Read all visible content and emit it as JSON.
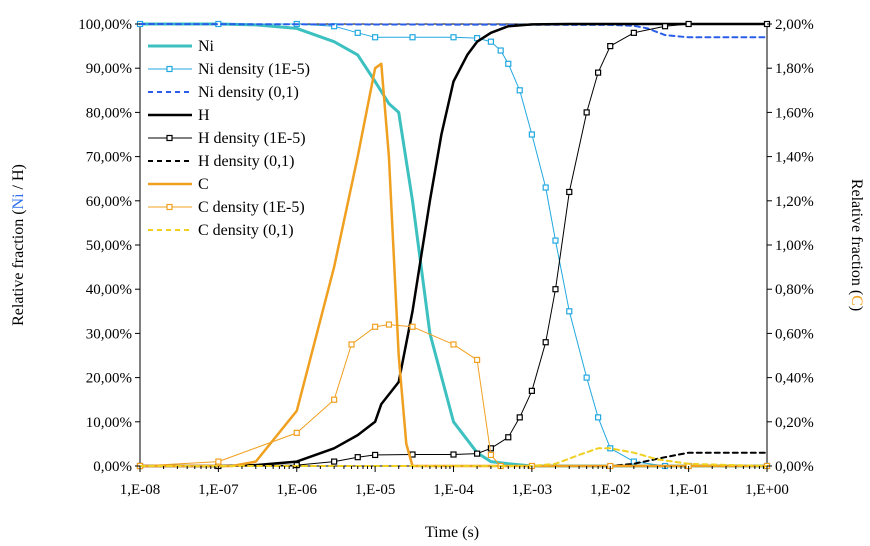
{
  "chart_data": {
    "type": "line",
    "xlabel": "Time (s)",
    "x_scale": "log",
    "x_ticks": [
      "1,E-08",
      "1,E-07",
      "1,E-06",
      "1,E-05",
      "1,E-04",
      "1,E-03",
      "1,E-02",
      "1,E-01",
      "1,E+00"
    ],
    "xlim": [
      1e-08,
      1
    ],
    "y_left": {
      "label_parts": [
        "Relative fraction (",
        "Ni",
        " / ",
        "H",
        ")"
      ],
      "label_colors": [
        "#000000",
        "#2f6ff0",
        "#000000",
        "#000000",
        "#000000"
      ],
      "ylim": [
        0,
        100
      ],
      "ticks": [
        "0,00%",
        "10,00%",
        "20,00%",
        "30,00%",
        "40,00%",
        "50,00%",
        "60,00%",
        "70,00%",
        "80,00%",
        "90,00%",
        "100,00%"
      ]
    },
    "y_right": {
      "label_parts": [
        "Relative fraction (",
        "C",
        ")"
      ],
      "label_colors": [
        "#000000",
        "#f0a020",
        "#000000"
      ],
      "ylim": [
        0,
        2
      ],
      "ticks": [
        "0,00%",
        "0,20%",
        "0,40%",
        "0,60%",
        "0,80%",
        "1,00%",
        "1,20%",
        "1,40%",
        "1,60%",
        "1,80%",
        "2,00%"
      ]
    },
    "grid": false,
    "legend_position": "top-left",
    "series": [
      {
        "name": "Ni",
        "axis": "left",
        "color": "#3cc0c0",
        "style": "solid",
        "width": 3,
        "marker": "none",
        "x": [
          1e-08,
          1e-07,
          3e-07,
          1e-06,
          3e-06,
          6e-06,
          1e-05,
          1.5e-05,
          2e-05,
          3e-05,
          5e-05,
          0.0001,
          0.0002,
          0.0003,
          0.0005,
          0.001,
          1
        ],
        "y": [
          100,
          100,
          99.8,
          99,
          96,
          93,
          87,
          82,
          80,
          60,
          30,
          10,
          3,
          1,
          0.5,
          0,
          0
        ]
      },
      {
        "name": "Ni density (1E-5)",
        "axis": "left",
        "color": "#22a8e0",
        "style": "solid",
        "width": 1,
        "marker": "square",
        "x": [
          1e-08,
          1e-07,
          1e-06,
          3e-06,
          6e-06,
          1e-05,
          3e-05,
          0.0001,
          0.0002,
          0.0003,
          0.0004,
          0.0005,
          0.0007,
          0.001,
          0.0015,
          0.002,
          0.003,
          0.005,
          0.007,
          0.01,
          0.02,
          0.05,
          0.1,
          1
        ],
        "y": [
          100,
          100,
          100,
          99.5,
          98,
          97,
          97,
          97,
          96.8,
          96,
          94,
          91,
          85,
          75,
          63,
          51,
          35,
          20,
          11,
          4,
          1,
          0,
          0,
          0
        ]
      },
      {
        "name": "Ni density (0,1)",
        "axis": "left",
        "color": "#2a5ee8",
        "style": "dashed",
        "width": 2,
        "marker": "none",
        "x": [
          1e-08,
          0.01,
          0.02,
          0.03,
          0.05,
          0.1,
          1
        ],
        "y": [
          100,
          99.8,
          99.6,
          99,
          97.5,
          97,
          97
        ]
      },
      {
        "name": "H",
        "axis": "left",
        "color": "#000000",
        "style": "solid",
        "width": 2.5,
        "marker": "none",
        "x": [
          1e-08,
          1e-07,
          3e-07,
          1e-06,
          3e-06,
          6e-06,
          1e-05,
          1.2e-05,
          2e-05,
          3e-05,
          5e-05,
          7e-05,
          0.0001,
          0.00015,
          0.0002,
          0.0003,
          0.0005,
          0.001,
          0.003,
          1
        ],
        "y": [
          0,
          0,
          0.2,
          1,
          4,
          7,
          10,
          14,
          19,
          35,
          60,
          75,
          87,
          93,
          96,
          98,
          99.5,
          99.9,
          100,
          100
        ]
      },
      {
        "name": "H density (1E-5)",
        "axis": "left",
        "color": "#000000",
        "style": "solid",
        "width": 1,
        "marker": "square",
        "x": [
          1e-08,
          1e-07,
          1e-06,
          3e-06,
          6e-06,
          1e-05,
          3e-05,
          0.0001,
          0.0002,
          0.0003,
          0.0005,
          0.0007,
          0.001,
          0.0015,
          0.002,
          0.003,
          0.005,
          0.007,
          0.01,
          0.02,
          0.05,
          0.1,
          1
        ],
        "y": [
          0,
          0,
          0.2,
          1,
          2,
          2.5,
          2.6,
          2.6,
          2.8,
          4,
          6.5,
          11,
          17,
          28,
          40,
          62,
          80,
          89,
          95,
          98,
          99.5,
          100,
          100
        ]
      },
      {
        "name": "H density (0,1)",
        "axis": "left",
        "color": "#000000",
        "style": "dashed",
        "width": 2,
        "marker": "none",
        "x": [
          1e-08,
          0.01,
          0.02,
          0.05,
          0.1,
          0.2,
          1
        ],
        "y": [
          0,
          0,
          0.5,
          2,
          3,
          3,
          3
        ]
      },
      {
        "name": "C",
        "axis": "right",
        "color": "#f0a020",
        "style": "solid",
        "width": 2.5,
        "marker": "none",
        "x": [
          1e-08,
          1e-07,
          1.5e-07,
          3e-07,
          1e-06,
          3e-06,
          6e-06,
          1e-05,
          1.2e-05,
          1.5e-05,
          2e-05,
          2.5e-05,
          3e-05,
          1
        ],
        "y": [
          0,
          0,
          0,
          0.02,
          0.25,
          0.9,
          1.4,
          1.8,
          1.82,
          1.4,
          0.5,
          0.1,
          0,
          0
        ]
      },
      {
        "name": "C density (1E-5)",
        "axis": "right",
        "color": "#f0a020",
        "style": "solid",
        "width": 1,
        "marker": "square",
        "x": [
          1e-08,
          1e-07,
          1e-06,
          3e-06,
          5e-06,
          1e-05,
          1.5e-05,
          3e-05,
          0.0001,
          0.0002,
          0.0003,
          0.0004,
          0.001,
          0.01,
          0.1,
          1
        ],
        "y": [
          0,
          0.02,
          0.15,
          0.3,
          0.55,
          0.63,
          0.64,
          0.63,
          0.55,
          0.48,
          0.05,
          0,
          0,
          0,
          0,
          0
        ]
      },
      {
        "name": "C density (0,1)",
        "axis": "right",
        "color": "#f0d020",
        "style": "dashed",
        "width": 2,
        "marker": "none",
        "x": [
          1e-08,
          0.001,
          0.002,
          0.004,
          0.007,
          0.01,
          0.02,
          0.04,
          0.1,
          1
        ],
        "y": [
          0,
          0,
          0.01,
          0.05,
          0.08,
          0.08,
          0.06,
          0.03,
          0.01,
          0
        ]
      }
    ]
  }
}
